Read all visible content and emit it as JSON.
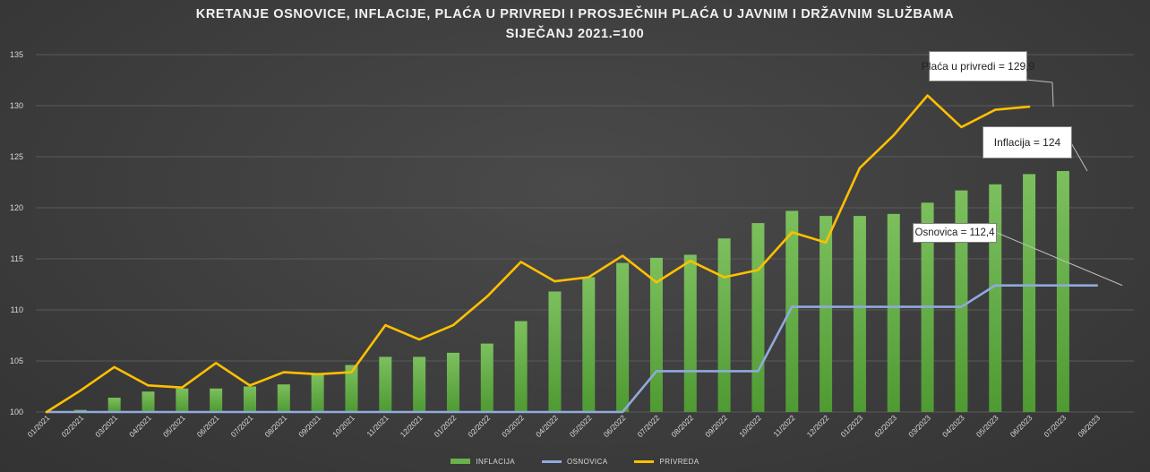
{
  "title_line1": "KRETANJE OSNOVICE, INFLACIJE, PLAĆA U PRIVREDI I PROSJEČNIH PLAĆA U JAVNIM I DRŽAVNIM SLUŽBAMA",
  "title_line2": "SIJEČANJ 2021.=100",
  "callouts": {
    "placa": "Plaća u privredi = 129,9",
    "inflacija": "Inflacija = 124",
    "osnovica": "Osnovica = 112,4"
  },
  "colors": {
    "inflacija": "#6ab04c",
    "osnovica": "#8faadc",
    "privreda": "#ffc000",
    "grid": "#5a5a5a",
    "text": "#d9d9d9"
  },
  "chart_data": {
    "type": "bar",
    "title": "KRETANJE OSNOVICE, INFLACIJE, PLAĆA U PRIVREDI I PROSJEČNIH PLAĆA U JAVNIM I DRŽAVNIM SLUŽBAMA",
    "subtitle": "SIJEČANJ 2021.=100",
    "ylim": [
      100,
      135
    ],
    "yticks": [
      100,
      105,
      110,
      115,
      120,
      125,
      130,
      135
    ],
    "grid": true,
    "legend_position": "bottom",
    "categories": [
      "01/2021",
      "02/2021",
      "03/2021",
      "04/2021",
      "05/2021",
      "06/2021",
      "07/2021",
      "08/2021",
      "09/2021",
      "10/2021",
      "11/2021",
      "12/2021",
      "01/2022",
      "02/2022",
      "03/2022",
      "04/2022",
      "05/2022",
      "06/2022",
      "07/2022",
      "08/2022",
      "09/2022",
      "10/2022",
      "11/2022",
      "12/2022",
      "01/2023",
      "02/2023",
      "03/2023",
      "04/2023",
      "05/2023",
      "06/2023",
      "07/2023",
      "08/2023"
    ],
    "series": [
      {
        "name": "INFLACIJA",
        "type": "bar",
        "values": [
          100,
          100.2,
          101.4,
          102,
          102.3,
          102.3,
          102.5,
          102.7,
          103.7,
          104.6,
          105.4,
          105.4,
          105.8,
          106.7,
          108.9,
          111.8,
          113.2,
          114.6,
          115.1,
          115.4,
          117,
          118.5,
          119.7,
          119.2,
          119.2,
          119.4,
          120.5,
          121.7,
          122.3,
          123.3,
          123.6,
          null
        ]
      },
      {
        "name": "OSNOVICA",
        "type": "line",
        "values": [
          100,
          100,
          100,
          100,
          100,
          100,
          100,
          100,
          100,
          100,
          100,
          100,
          100,
          100,
          100,
          100,
          100,
          100,
          104,
          104,
          104,
          104,
          110.3,
          110.3,
          110.3,
          110.3,
          110.3,
          110.3,
          112.4,
          112.4,
          112.4,
          112.4
        ]
      },
      {
        "name": "PRIVREDA",
        "type": "line",
        "values": [
          100,
          102.1,
          104.4,
          102.6,
          102.4,
          104.8,
          102.6,
          103.9,
          103.7,
          103.9,
          108.5,
          107.1,
          108.5,
          111.3,
          114.7,
          112.8,
          113.2,
          115.3,
          112.7,
          114.8,
          113.2,
          113.9,
          117.6,
          116.6,
          123.9,
          127.1,
          131,
          127.9,
          129.6,
          129.9,
          null,
          null
        ]
      }
    ]
  }
}
